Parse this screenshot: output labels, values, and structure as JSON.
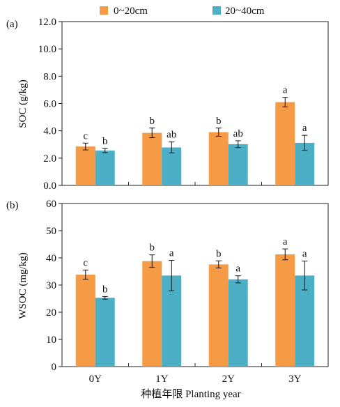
{
  "legend": {
    "items": [
      {
        "label": "0~20cm",
        "color": "#F59A45"
      },
      {
        "label": "20~40cm",
        "color": "#4DAFC6"
      }
    ]
  },
  "xlabel": "种植年限 Planting year",
  "chart_data": [
    {
      "type": "bar",
      "panel_label": "(a)",
      "ylabel": "SOC (g/kg)",
      "ylim": [
        0,
        12
      ],
      "yticks": [
        "0.0",
        "2.0",
        "4.0",
        "6.0",
        "8.0",
        "10.0",
        "12.0"
      ],
      "categories": [
        "0Y",
        "1Y",
        "2Y",
        "3Y"
      ],
      "series": [
        {
          "name": "0~20cm",
          "color": "#F59A45",
          "values": [
            2.85,
            3.85,
            3.9,
            6.1
          ],
          "errors": [
            0.25,
            0.35,
            0.3,
            0.35
          ],
          "letters": [
            "c",
            "b",
            "b",
            "a"
          ]
        },
        {
          "name": "20~40cm",
          "color": "#4DAFC6",
          "values": [
            2.55,
            2.78,
            3.02,
            3.12
          ],
          "errors": [
            0.15,
            0.4,
            0.25,
            0.55
          ],
          "letters": [
            "b",
            "ab",
            "ab",
            "a"
          ]
        }
      ]
    },
    {
      "type": "bar",
      "panel_label": "(b)",
      "ylabel": "WSOC (mg/kg)",
      "ylim": [
        0,
        60
      ],
      "yticks": [
        "0",
        "10",
        "20",
        "30",
        "40",
        "50",
        "60"
      ],
      "categories": [
        "0Y",
        "1Y",
        "2Y",
        "3Y"
      ],
      "series": [
        {
          "name": "0~20cm",
          "color": "#F59A45",
          "values": [
            33.8,
            38.8,
            37.6,
            41.3
          ],
          "errors": [
            1.7,
            2.3,
            1.3,
            2.0
          ],
          "letters": [
            "c",
            "b",
            "b",
            "a"
          ]
        },
        {
          "name": "20~40cm",
          "color": "#4DAFC6",
          "values": [
            25.3,
            33.5,
            32.1,
            33.5
          ],
          "errors": [
            0.5,
            5.6,
            1.3,
            5.3
          ],
          "letters": [
            "b",
            "a",
            "a",
            "a"
          ]
        }
      ]
    }
  ]
}
